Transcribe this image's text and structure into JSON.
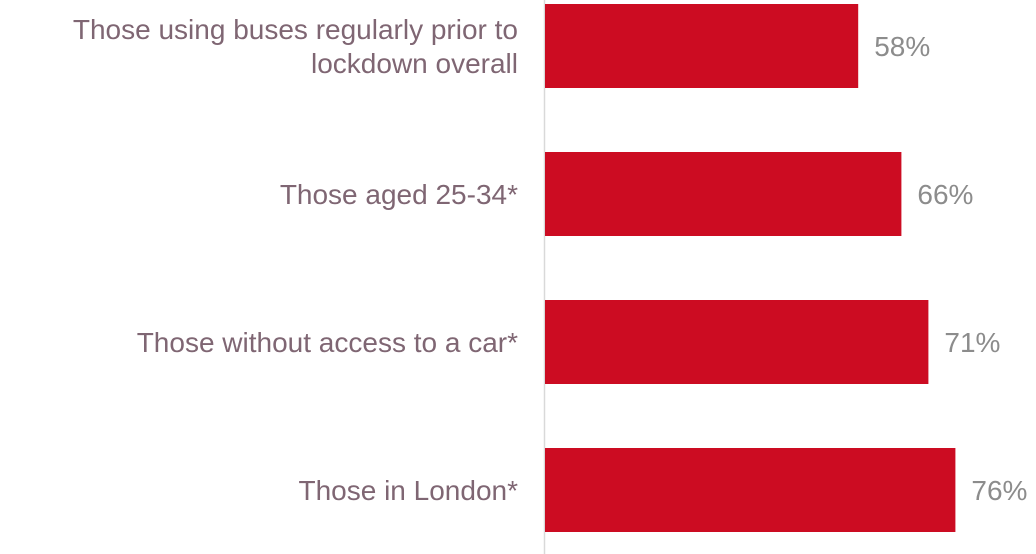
{
  "chart_data": {
    "type": "bar",
    "orientation": "horizontal",
    "categories": [
      [
        "Those using buses regularly prior to",
        "lockdown overall"
      ],
      [
        "Those aged 25-34*"
      ],
      [
        "Those without access to a car*"
      ],
      [
        "Those in London*"
      ]
    ],
    "values": [
      58,
      66,
      71,
      76
    ],
    "value_labels": [
      "58%",
      "66%",
      "71%",
      "76%"
    ],
    "xlim": [
      0,
      100
    ],
    "grid": false,
    "legend": "none",
    "colors": {
      "bar": "#cc0c22",
      "category_text": "#7f6673",
      "value_text": "#8c8c8c",
      "axis": "#d9d9d9"
    }
  }
}
